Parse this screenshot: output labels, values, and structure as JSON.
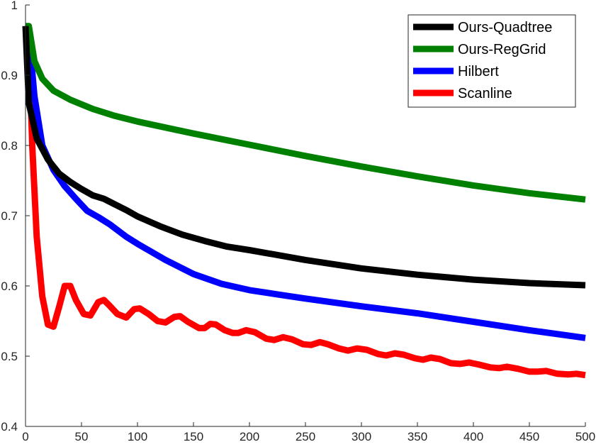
{
  "chart_data": {
    "type": "line",
    "title": "",
    "xlabel": "",
    "ylabel": "",
    "xlim": [
      0,
      500
    ],
    "ylim": [
      0.4,
      1
    ],
    "x_ticks": [
      "0",
      "50",
      "100",
      "150",
      "200",
      "250",
      "300",
      "350",
      "400",
      "450",
      "500"
    ],
    "y_ticks": [
      "0.4",
      "0.5",
      "0.6",
      "0.7",
      "0.8",
      "0.9",
      "1"
    ],
    "legend_position": "top-right",
    "series": [
      {
        "name": "Ours-Quadtree",
        "color": "#000000",
        "points": [
          [
            0,
            0.97
          ],
          [
            3,
            0.86
          ],
          [
            10,
            0.81
          ],
          [
            20,
            0.78
          ],
          [
            30,
            0.76
          ],
          [
            40,
            0.748
          ],
          [
            50,
            0.738
          ],
          [
            60,
            0.729
          ],
          [
            70,
            0.724
          ],
          [
            80,
            0.716
          ],
          [
            90,
            0.708
          ],
          [
            100,
            0.699
          ],
          [
            120,
            0.685
          ],
          [
            140,
            0.673
          ],
          [
            160,
            0.664
          ],
          [
            180,
            0.656
          ],
          [
            200,
            0.651
          ],
          [
            250,
            0.637
          ],
          [
            300,
            0.625
          ],
          [
            350,
            0.616
          ],
          [
            400,
            0.609
          ],
          [
            450,
            0.604
          ],
          [
            500,
            0.601
          ]
        ]
      },
      {
        "name": "Ours-RegGrid",
        "color": "#008000",
        "points": [
          [
            0,
            0.97
          ],
          [
            3,
            0.97
          ],
          [
            8,
            0.92
          ],
          [
            15,
            0.895
          ],
          [
            25,
            0.878
          ],
          [
            40,
            0.865
          ],
          [
            60,
            0.852
          ],
          [
            80,
            0.842
          ],
          [
            100,
            0.834
          ],
          [
            150,
            0.817
          ],
          [
            200,
            0.801
          ],
          [
            250,
            0.785
          ],
          [
            300,
            0.77
          ],
          [
            350,
            0.756
          ],
          [
            400,
            0.743
          ],
          [
            450,
            0.732
          ],
          [
            500,
            0.723
          ]
        ]
      },
      {
        "name": "Hilbert",
        "color": "#0000ff",
        "points": [
          [
            0,
            0.965
          ],
          [
            3,
            0.96
          ],
          [
            8,
            0.87
          ],
          [
            15,
            0.8
          ],
          [
            25,
            0.765
          ],
          [
            35,
            0.742
          ],
          [
            45,
            0.724
          ],
          [
            55,
            0.707
          ],
          [
            65,
            0.698
          ],
          [
            75,
            0.688
          ],
          [
            90,
            0.67
          ],
          [
            100,
            0.66
          ],
          [
            125,
            0.637
          ],
          [
            150,
            0.617
          ],
          [
            175,
            0.603
          ],
          [
            200,
            0.594
          ],
          [
            225,
            0.588
          ],
          [
            250,
            0.582
          ],
          [
            300,
            0.571
          ],
          [
            350,
            0.561
          ],
          [
            400,
            0.549
          ],
          [
            450,
            0.537
          ],
          [
            500,
            0.526
          ]
        ]
      },
      {
        "name": "Scanline",
        "color": "#ff0000",
        "points": [
          [
            0,
            0.97
          ],
          [
            3,
            0.95
          ],
          [
            6,
            0.8
          ],
          [
            10,
            0.67
          ],
          [
            15,
            0.585
          ],
          [
            20,
            0.545
          ],
          [
            25,
            0.542
          ],
          [
            30,
            0.57
          ],
          [
            35,
            0.6
          ],
          [
            40,
            0.6
          ],
          [
            45,
            0.58
          ],
          [
            52,
            0.56
          ],
          [
            58,
            0.558
          ],
          [
            65,
            0.577
          ],
          [
            70,
            0.58
          ],
          [
            75,
            0.572
          ],
          [
            82,
            0.56
          ],
          [
            90,
            0.555
          ],
          [
            97,
            0.567
          ],
          [
            102,
            0.568
          ],
          [
            110,
            0.56
          ],
          [
            118,
            0.55
          ],
          [
            125,
            0.548
          ],
          [
            133,
            0.556
          ],
          [
            138,
            0.557
          ],
          [
            145,
            0.549
          ],
          [
            155,
            0.54
          ],
          [
            160,
            0.54
          ],
          [
            165,
            0.546
          ],
          [
            170,
            0.545
          ],
          [
            178,
            0.537
          ],
          [
            185,
            0.533
          ],
          [
            190,
            0.533
          ],
          [
            197,
            0.537
          ],
          [
            205,
            0.534
          ],
          [
            215,
            0.525
          ],
          [
            222,
            0.523
          ],
          [
            230,
            0.527
          ],
          [
            238,
            0.524
          ],
          [
            248,
            0.517
          ],
          [
            255,
            0.516
          ],
          [
            263,
            0.52
          ],
          [
            270,
            0.517
          ],
          [
            280,
            0.511
          ],
          [
            288,
            0.508
          ],
          [
            296,
            0.511
          ],
          [
            305,
            0.509
          ],
          [
            315,
            0.503
          ],
          [
            322,
            0.501
          ],
          [
            330,
            0.504
          ],
          [
            338,
            0.502
          ],
          [
            348,
            0.497
          ],
          [
            355,
            0.495
          ],
          [
            362,
            0.498
          ],
          [
            370,
            0.496
          ],
          [
            380,
            0.49
          ],
          [
            388,
            0.489
          ],
          [
            396,
            0.491
          ],
          [
            405,
            0.488
          ],
          [
            415,
            0.484
          ],
          [
            423,
            0.483
          ],
          [
            430,
            0.485
          ],
          [
            440,
            0.482
          ],
          [
            450,
            0.478
          ],
          [
            457,
            0.478
          ],
          [
            465,
            0.479
          ],
          [
            475,
            0.475
          ],
          [
            485,
            0.474
          ],
          [
            492,
            0.475
          ],
          [
            500,
            0.473
          ]
        ]
      }
    ]
  }
}
